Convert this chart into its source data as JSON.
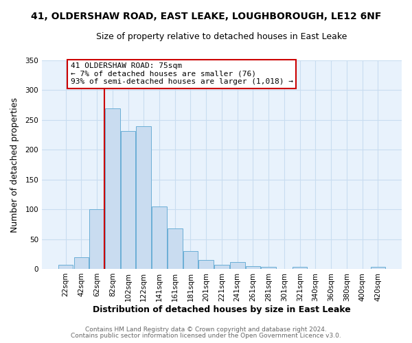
{
  "title_line1": "41, OLDERSHAW ROAD, EAST LEAKE, LOUGHBOROUGH, LE12 6NF",
  "title_line2": "Size of property relative to detached houses in East Leake",
  "xlabel": "Distribution of detached houses by size in East Leake",
  "ylabel": "Number of detached properties",
  "categories": [
    "22sqm",
    "42sqm",
    "62sqm",
    "82sqm",
    "102sqm",
    "122sqm",
    "141sqm",
    "161sqm",
    "181sqm",
    "201sqm",
    "221sqm",
    "241sqm",
    "261sqm",
    "281sqm",
    "301sqm",
    "321sqm",
    "340sqm",
    "360sqm",
    "380sqm",
    "400sqm",
    "420sqm"
  ],
  "values": [
    7,
    20,
    100,
    270,
    232,
    240,
    105,
    68,
    30,
    15,
    7,
    11,
    4,
    3,
    0,
    3,
    0,
    0,
    0,
    0,
    3
  ],
  "bar_color": "#c9dcf0",
  "bar_edge_color": "#6aaed6",
  "vline_color": "#cc0000",
  "ylim": [
    0,
    350
  ],
  "yticks": [
    0,
    50,
    100,
    150,
    200,
    250,
    300,
    350
  ],
  "annotation_title": "41 OLDERSHAW ROAD: 75sqm",
  "annotation_line2": "← 7% of detached houses are smaller (76)",
  "annotation_line3": "93% of semi-detached houses are larger (1,018) →",
  "annotation_box_color": "#ffffff",
  "annotation_box_edge": "#cc0000",
  "footnote1": "Contains HM Land Registry data © Crown copyright and database right 2024.",
  "footnote2": "Contains public sector information licensed under the Open Government Licence v3.0.",
  "fig_bg_color": "#ffffff",
  "plot_bg_color": "#e8f2fc",
  "grid_color": "#c8ddf0",
  "title_fontsize": 10,
  "subtitle_fontsize": 9,
  "axis_label_fontsize": 9,
  "tick_fontsize": 7.5,
  "annotation_fontsize": 8,
  "footnote_fontsize": 6.5
}
